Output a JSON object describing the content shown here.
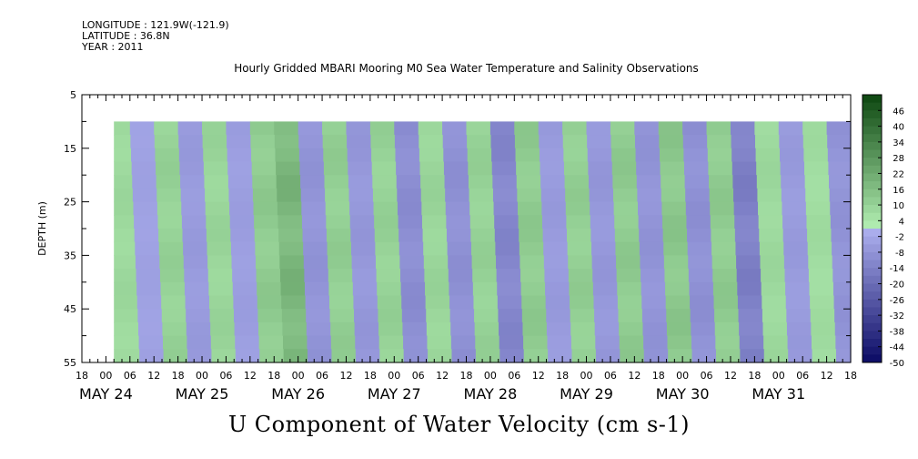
{
  "header": {
    "longitude": "LONGITUDE : 121.9W(-121.9)",
    "latitude": "LATITUDE : 36.8N",
    "year": "YEAR : 2011",
    "title": "Hourly Gridded MBARI Mooring M0 Sea Water Temperature and Salinity Observations"
  },
  "footer": {
    "variable_title": "U Component of Water Velocity (cm s-1)"
  },
  "chart_data": {
    "type": "heatmap",
    "title": "Hourly Gridded MBARI Mooring M0 Sea Water Temperature and Salinity Observations",
    "xlabel": "",
    "ylabel": "DEPTH (m)",
    "variable": "U Component of Water Velocity (cm s-1)",
    "x_hours_range": [
      -6,
      186
    ],
    "data_start_hour": 2,
    "ylim": [
      5,
      55
    ],
    "y_inverted": true,
    "data_depth_range": [
      10,
      55
    ],
    "y_ticks": [
      5,
      15,
      25,
      35,
      45,
      55
    ],
    "x_hour_ticks": [
      "18",
      "00",
      "06",
      "12",
      "18",
      "00",
      "06",
      "12",
      "18",
      "00",
      "06",
      "12",
      "18",
      "00",
      "06",
      "12",
      "18",
      "00",
      "06",
      "12",
      "18",
      "00",
      "06",
      "12",
      "18",
      "00",
      "06",
      "12",
      "18",
      "00",
      "06",
      "12",
      "18"
    ],
    "x_day_labels": [
      "MAY 24",
      "MAY 25",
      "MAY 26",
      "MAY 27",
      "MAY 28",
      "MAY 29",
      "MAY 30",
      "MAY 31"
    ],
    "colorbar": {
      "min": -50,
      "max": 52,
      "step": 3,
      "labels": [
        "46",
        "40",
        "34",
        "28",
        "22",
        "16",
        "10",
        "4",
        "-2",
        "-8",
        "-14",
        "-20",
        "-26",
        "-32",
        "-38",
        "-44",
        "-50"
      ]
    },
    "bands": [
      {
        "hour": 2,
        "value": 8
      },
      {
        "hour": 6,
        "value": -4
      },
      {
        "hour": 12,
        "value": 10
      },
      {
        "hour": 18,
        "value": -6
      },
      {
        "hour": 24,
        "value": 9
      },
      {
        "hour": 30,
        "value": -5
      },
      {
        "hour": 36,
        "value": 12
      },
      {
        "hour": 42,
        "value": 18
      },
      {
        "hour": 48,
        "value": -8
      },
      {
        "hour": 54,
        "value": 11
      },
      {
        "hour": 60,
        "value": -7
      },
      {
        "hour": 66,
        "value": 10
      },
      {
        "hour": 72,
        "value": -10
      },
      {
        "hour": 78,
        "value": 9
      },
      {
        "hour": 84,
        "value": -9
      },
      {
        "hour": 90,
        "value": 10
      },
      {
        "hour": 96,
        "value": -12
      },
      {
        "hour": 102,
        "value": 12
      },
      {
        "hour": 108,
        "value": -6
      },
      {
        "hour": 114,
        "value": 11
      },
      {
        "hour": 120,
        "value": -7
      },
      {
        "hour": 126,
        "value": 12
      },
      {
        "hour": 132,
        "value": -8
      },
      {
        "hour": 138,
        "value": 13
      },
      {
        "hour": 144,
        "value": -9
      },
      {
        "hour": 150,
        "value": 12
      },
      {
        "hour": 156,
        "value": -14
      },
      {
        "hour": 162,
        "value": 8
      },
      {
        "hour": 168,
        "value": -6
      },
      {
        "hour": 174,
        "value": 7
      },
      {
        "hour": 180,
        "value": -8
      },
      {
        "hour": 186,
        "value": 6
      }
    ]
  }
}
